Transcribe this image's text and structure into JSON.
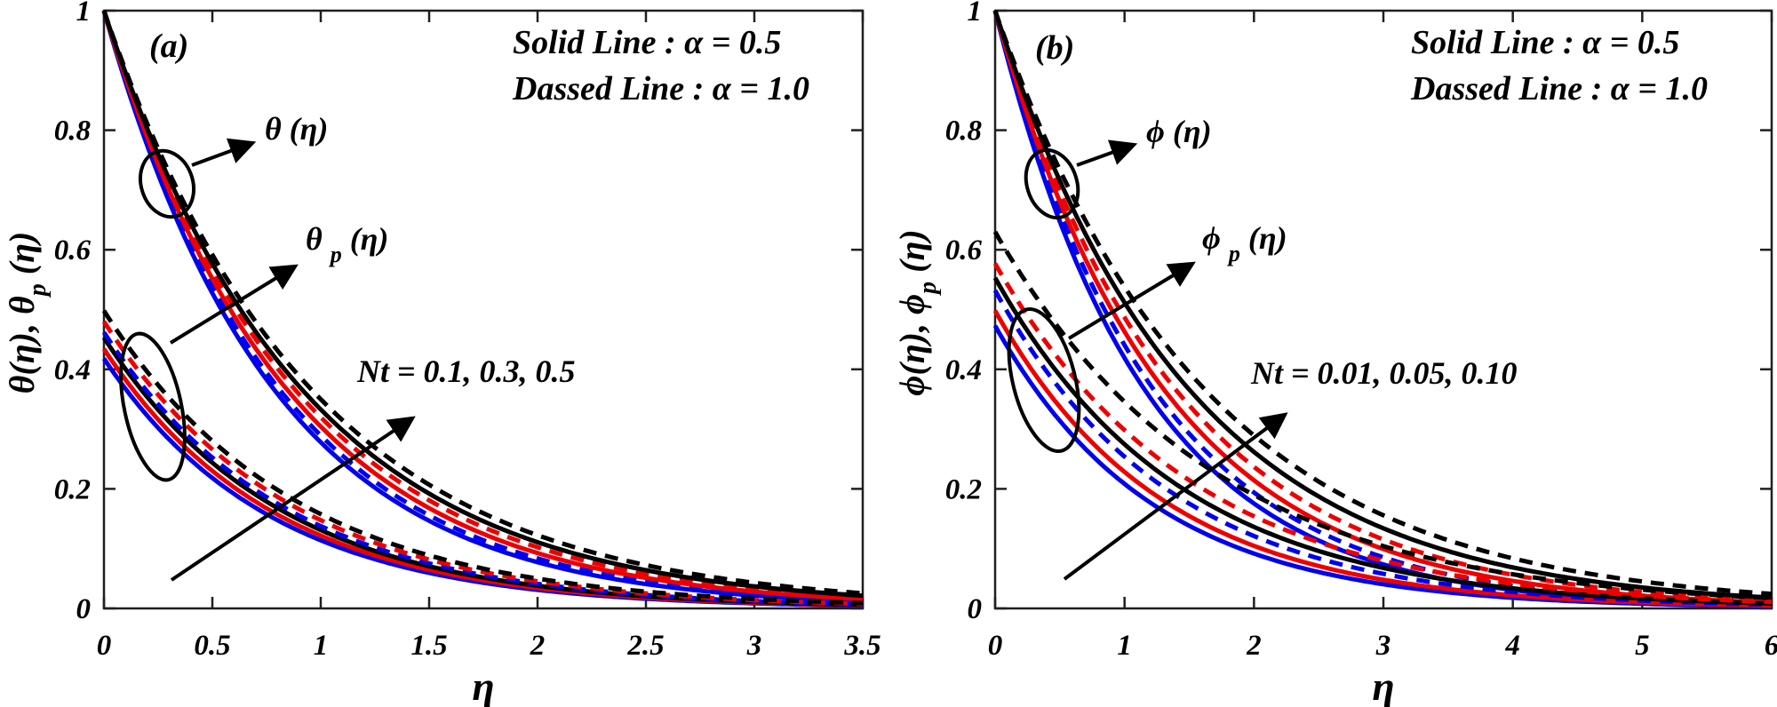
{
  "figure": {
    "panels": [
      {
        "id": "a",
        "label": "(a)",
        "xlabel": "η",
        "ylabel": {
          "pre": "θ(η), θ",
          "sub": "p",
          "post": " (η)"
        },
        "legend": [
          "Solid Line      :  α = 0.5",
          "Dassed Line :  α = 1.0"
        ],
        "annotations": {
          "upper": "θ (η)",
          "lower": {
            "pre": "θ ",
            "sub": "p",
            "post": " (η)"
          },
          "nt": "Nt = 0.1, 0.3, 0.5"
        }
      },
      {
        "id": "b",
        "label": "(b)",
        "xlabel": "η",
        "ylabel": {
          "pre": "ϕ(η), ϕ",
          "sub": "p",
          "post": " (η)"
        },
        "legend": [
          "Solid Line      :  α = 0.5",
          "Dassed Line :  α = 1.0"
        ],
        "annotations": {
          "upper": "ϕ (η)",
          "lower": {
            "pre": "ϕ ",
            "sub": "p",
            "post": " (η)"
          },
          "nt": "Nt = 0.01, 0.05, 0.10"
        }
      }
    ],
    "colors": {
      "black": "#000000",
      "red": "#ee0000",
      "blue": "#0000ee"
    }
  },
  "chart_data": [
    {
      "id": "a",
      "type": "line",
      "title": "",
      "xlabel": "η",
      "ylabel": "θ(η), θp(η)",
      "xlim": [
        0,
        3.5
      ],
      "ylim": [
        0,
        1
      ],
      "grid": false,
      "legend_position": "top-right-text",
      "xticks": [
        {
          "v": 0,
          "label": "0"
        },
        {
          "v": 0.5,
          "label": "0.5"
        },
        {
          "v": 1,
          "label": "1"
        },
        {
          "v": 1.5,
          "label": "1.5"
        },
        {
          "v": 2,
          "label": "2"
        },
        {
          "v": 2.5,
          "label": "2.5"
        },
        {
          "v": 3,
          "label": "3"
        },
        {
          "v": 3.5,
          "label": "3.5"
        }
      ],
      "yticks": [
        {
          "v": 0,
          "label": "0"
        },
        {
          "v": 0.2,
          "label": "0.2"
        },
        {
          "v": 0.4,
          "label": "0.4"
        },
        {
          "v": 0.6,
          "label": "0.6"
        },
        {
          "v": 0.8,
          "label": "0.8"
        },
        {
          "v": 1,
          "label": "1"
        }
      ],
      "model": "y(eta) = y0 * exp(-k * eta)",
      "series": [
        {
          "name": "θ(η), Nt=0.1, α=0.5",
          "group": "θ",
          "color": "#0000ee",
          "style": "solid",
          "y0": 1.0,
          "k": 1.28
        },
        {
          "name": "θ(η), Nt=0.1, α=1.0",
          "group": "θ",
          "color": "#0000ee",
          "style": "dashed",
          "y0": 1.0,
          "k": 1.24
        },
        {
          "name": "θ(η), Nt=0.3, α=0.5",
          "group": "θ",
          "color": "#ee0000",
          "style": "solid",
          "y0": 1.0,
          "k": 1.19
        },
        {
          "name": "θ(η), Nt=0.3, α=1.0",
          "group": "θ",
          "color": "#ee0000",
          "style": "dashed",
          "y0": 1.0,
          "k": 1.14
        },
        {
          "name": "θ(η), Nt=0.5, α=0.5",
          "group": "θ",
          "color": "#000000",
          "style": "solid",
          "y0": 1.0,
          "k": 1.1
        },
        {
          "name": "θ(η), Nt=0.5, α=1.0",
          "group": "θ",
          "color": "#000000",
          "style": "dashed",
          "y0": 1.0,
          "k": 1.05
        },
        {
          "name": "θp(η), Nt=0.1, α=0.5",
          "group": "θp",
          "color": "#0000ee",
          "style": "solid",
          "y0": 0.418,
          "k": 1.3
        },
        {
          "name": "θp(η), Nt=0.3, α=0.5",
          "group": "θp",
          "color": "#ee0000",
          "style": "solid",
          "y0": 0.434,
          "k": 1.27
        },
        {
          "name": "θp(η), Nt=0.5, α=0.5",
          "group": "θp",
          "color": "#000000",
          "style": "solid",
          "y0": 0.453,
          "k": 1.24
        },
        {
          "name": "θp(η), Nt=0.1, α=1.0",
          "group": "θp",
          "color": "#0000ee",
          "style": "dashed",
          "y0": 0.462,
          "k": 1.21
        },
        {
          "name": "θp(η), Nt=0.3, α=1.0",
          "group": "θp",
          "color": "#ee0000",
          "style": "dashed",
          "y0": 0.48,
          "k": 1.18
        },
        {
          "name": "θp(η), Nt=0.5, α=1.0",
          "group": "θp",
          "color": "#000000",
          "style": "dashed",
          "y0": 0.498,
          "k": 1.15
        }
      ]
    },
    {
      "id": "b",
      "type": "line",
      "title": "",
      "xlabel": "η",
      "ylabel": "ϕ(η), ϕp(η)",
      "xlim": [
        0,
        6
      ],
      "ylim": [
        0,
        1
      ],
      "grid": false,
      "legend_position": "top-right-text",
      "xticks": [
        {
          "v": 0,
          "label": "0"
        },
        {
          "v": 1,
          "label": "1"
        },
        {
          "v": 2,
          "label": "2"
        },
        {
          "v": 3,
          "label": "3"
        },
        {
          "v": 4,
          "label": "4"
        },
        {
          "v": 5,
          "label": "5"
        },
        {
          "v": 6,
          "label": "6"
        }
      ],
      "yticks": [
        {
          "v": 0,
          "label": "0"
        },
        {
          "v": 0.2,
          "label": "0.2"
        },
        {
          "v": 0.4,
          "label": "0.4"
        },
        {
          "v": 0.6,
          "label": "0.6"
        },
        {
          "v": 0.8,
          "label": "0.8"
        },
        {
          "v": 1,
          "label": "1"
        }
      ],
      "model": "y(eta) = y0 * exp(-k * eta)",
      "series": [
        {
          "name": "ϕ(η), Nt=0.01, α=0.5",
          "group": "ϕ",
          "color": "#0000ee",
          "style": "solid",
          "y0": 1.0,
          "k": 0.87
        },
        {
          "name": "ϕ(η), Nt=0.01, α=1.0",
          "group": "ϕ",
          "color": "#0000ee",
          "style": "dashed",
          "y0": 1.0,
          "k": 0.82
        },
        {
          "name": "ϕ(η), Nt=0.05, α=0.5",
          "group": "ϕ",
          "color": "#ee0000",
          "style": "solid",
          "y0": 1.0,
          "k": 0.77
        },
        {
          "name": "ϕ(η), Nt=0.05, α=1.0",
          "group": "ϕ",
          "color": "#ee0000",
          "style": "dashed",
          "y0": 1.0,
          "k": 0.72
        },
        {
          "name": "ϕ(η), Nt=0.10, α=0.5",
          "group": "ϕ",
          "color": "#000000",
          "style": "solid",
          "y0": 1.0,
          "k": 0.67
        },
        {
          "name": "ϕ(η), Nt=0.10, α=1.0",
          "group": "ϕ",
          "color": "#000000",
          "style": "dashed",
          "y0": 1.0,
          "k": 0.62
        },
        {
          "name": "ϕp(η), Nt=0.01, α=0.5",
          "group": "ϕp",
          "color": "#0000ee",
          "style": "solid",
          "y0": 0.473,
          "k": 0.82
        },
        {
          "name": "ϕp(η), Nt=0.05, α=0.5",
          "group": "ϕp",
          "color": "#ee0000",
          "style": "solid",
          "y0": 0.498,
          "k": 0.78
        },
        {
          "name": "ϕp(η), Nt=0.01, α=1.0",
          "group": "ϕp",
          "color": "#0000ee",
          "style": "dashed",
          "y0": 0.532,
          "k": 0.74
        },
        {
          "name": "ϕp(η), Nt=0.10, α=0.5",
          "group": "ϕp",
          "color": "#000000",
          "style": "solid",
          "y0": 0.553,
          "k": 0.7
        },
        {
          "name": "ϕp(η), Nt=0.05, α=1.0",
          "group": "ϕp",
          "color": "#ee0000",
          "style": "dashed",
          "y0": 0.577,
          "k": 0.66
        },
        {
          "name": "ϕp(η), Nt=0.10, α=1.0",
          "group": "ϕp",
          "color": "#000000",
          "style": "dashed",
          "y0": 0.63,
          "k": 0.6
        }
      ]
    }
  ]
}
